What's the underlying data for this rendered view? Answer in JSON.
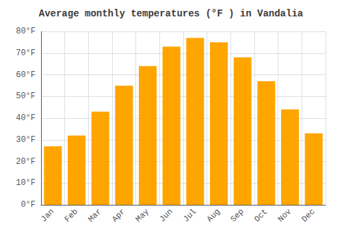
{
  "chart_data": {
    "type": "bar",
    "title": "Average monthly temperatures (°F ) in Vandalia",
    "categories": [
      "Jan",
      "Feb",
      "Mar",
      "Apr",
      "May",
      "Jun",
      "Jul",
      "Aug",
      "Sep",
      "Oct",
      "Nov",
      "Dec"
    ],
    "values": [
      27,
      32,
      43,
      55,
      64,
      73,
      77,
      75,
      68,
      57,
      44,
      33
    ],
    "color": "#FFA500",
    "ylim": [
      0,
      80
    ],
    "yticks": [
      {
        "value": 0,
        "label": "0°F"
      },
      {
        "value": 10,
        "label": "10°F"
      },
      {
        "value": 20,
        "label": "20°F"
      },
      {
        "value": 30,
        "label": "30°F"
      },
      {
        "value": 40,
        "label": "40°F"
      },
      {
        "value": 50,
        "label": "50°F"
      },
      {
        "value": 60,
        "label": "60°F"
      },
      {
        "value": 70,
        "label": "70°F"
      },
      {
        "value": 80,
        "label": "80°F"
      }
    ],
    "grid": true
  }
}
